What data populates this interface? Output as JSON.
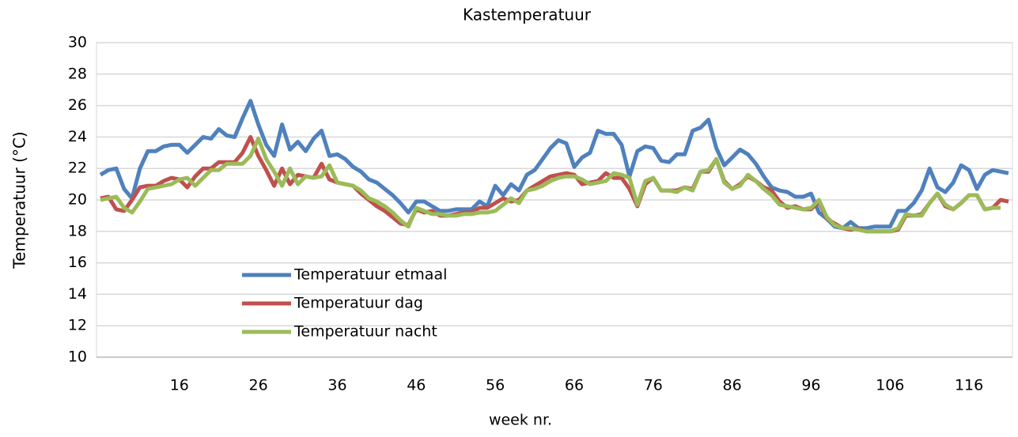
{
  "chart_data": {
    "type": "line",
    "title": "Kastemperatuur",
    "x_label": "week nr.",
    "y_label": "Temperatuur (°C)",
    "x": [
      6,
      7,
      8,
      9,
      10,
      11,
      12,
      13,
      14,
      15,
      16,
      17,
      18,
      19,
      20,
      21,
      22,
      23,
      24,
      25,
      26,
      27,
      28,
      29,
      30,
      31,
      32,
      33,
      34,
      35,
      36,
      37,
      38,
      39,
      40,
      41,
      42,
      43,
      44,
      45,
      46,
      47,
      48,
      49,
      50,
      51,
      52,
      53,
      54,
      55,
      56,
      57,
      58,
      59,
      60,
      61,
      62,
      63,
      64,
      65,
      66,
      67,
      68,
      69,
      70,
      71,
      72,
      73,
      74,
      75,
      76,
      77,
      78,
      79,
      80,
      81,
      82,
      83,
      84,
      85,
      86,
      87,
      88,
      89,
      90,
      91,
      92,
      93,
      94,
      95,
      96,
      97,
      98,
      99,
      100,
      101,
      102,
      103,
      104,
      105,
      106,
      107,
      108,
      109,
      110,
      111,
      112,
      113,
      114,
      115,
      116,
      117,
      118,
      119,
      120,
      121
    ],
    "xlim": [
      5.5,
      121.5
    ],
    "xticks": [
      16,
      26,
      36,
      46,
      56,
      66,
      76,
      86,
      96,
      106,
      116
    ],
    "ylim": [
      10,
      30
    ],
    "yticks": [
      10,
      12,
      14,
      16,
      18,
      20,
      22,
      24,
      26,
      28,
      30
    ],
    "grid": true,
    "series": [
      {
        "name": "Temperatuur etmaal",
        "color": "#4f81bd",
        "values": [
          21.6,
          21.9,
          22.0,
          20.7,
          20.1,
          22.0,
          23.1,
          23.1,
          23.4,
          23.5,
          23.5,
          23.0,
          23.5,
          24.0,
          23.9,
          24.5,
          24.1,
          24.0,
          25.2,
          26.3,
          24.8,
          23.5,
          22.8,
          24.8,
          23.2,
          23.7,
          23.1,
          23.9,
          24.4,
          22.8,
          22.9,
          22.6,
          22.1,
          21.8,
          21.3,
          21.1,
          20.7,
          20.3,
          19.8,
          19.2,
          19.9,
          19.9,
          19.6,
          19.3,
          19.3,
          19.4,
          19.4,
          19.4,
          19.9,
          19.6,
          20.9,
          20.3,
          21.0,
          20.6,
          21.6,
          21.9,
          22.6,
          23.3,
          23.8,
          23.6,
          22.1,
          22.7,
          23.0,
          24.4,
          24.2,
          24.2,
          23.5,
          21.5,
          23.1,
          23.4,
          23.3,
          22.5,
          22.4,
          22.9,
          22.9,
          24.4,
          24.6,
          25.1,
          23.3,
          22.2,
          22.7,
          23.2,
          22.9,
          22.3,
          21.5,
          20.8,
          20.6,
          20.5,
          20.2,
          20.2,
          20.4,
          19.2,
          18.8,
          18.3,
          18.2,
          18.6,
          18.2,
          18.2,
          18.3,
          18.3,
          18.3,
          19.3,
          19.3,
          19.8,
          20.6,
          22.0,
          20.8,
          20.5,
          21.1,
          22.2,
          21.9,
          20.7,
          21.6,
          21.9,
          21.8,
          21.7
        ]
      },
      {
        "name": "Temperatuur dag",
        "color": "#c0504d",
        "values": [
          20.1,
          20.2,
          19.4,
          19.3,
          20.0,
          20.8,
          20.9,
          20.9,
          21.2,
          21.4,
          21.3,
          20.8,
          21.5,
          22.0,
          22.0,
          22.4,
          22.4,
          22.4,
          23.0,
          24.0,
          22.8,
          21.9,
          20.9,
          22.0,
          21.0,
          21.6,
          21.5,
          21.4,
          22.3,
          21.3,
          21.1,
          21.0,
          20.9,
          20.4,
          20.0,
          19.6,
          19.3,
          18.9,
          18.5,
          18.4,
          19.4,
          19.2,
          19.3,
          19.0,
          19.0,
          19.1,
          19.2,
          19.2,
          19.5,
          19.5,
          19.8,
          20.1,
          19.9,
          20.0,
          20.6,
          20.9,
          21.2,
          21.5,
          21.6,
          21.7,
          21.6,
          21.0,
          21.1,
          21.2,
          21.7,
          21.4,
          21.4,
          20.7,
          19.6,
          21.0,
          21.4,
          20.6,
          20.6,
          20.6,
          20.8,
          20.7,
          21.8,
          21.8,
          22.6,
          21.2,
          20.7,
          21.0,
          21.5,
          21.2,
          20.8,
          20.6,
          19.9,
          19.5,
          19.6,
          19.4,
          19.4,
          19.9,
          18.8,
          18.5,
          18.2,
          18.1,
          18.2,
          18.0,
          18.0,
          18.0,
          18.0,
          18.1,
          19.0,
          19.0,
          19.1,
          19.8,
          20.4,
          19.6,
          19.4,
          19.8,
          20.3,
          20.3,
          19.4,
          19.5,
          20.0,
          19.9
        ]
      },
      {
        "name": "Temperatuur nacht",
        "color": "#9bbb59",
        "values": [
          20.0,
          20.1,
          20.2,
          19.5,
          19.2,
          19.9,
          20.7,
          20.8,
          20.9,
          21.0,
          21.3,
          21.4,
          20.9,
          21.4,
          21.9,
          21.9,
          22.3,
          22.3,
          22.3,
          22.8,
          23.9,
          22.6,
          21.8,
          20.9,
          22.0,
          21.0,
          21.5,
          21.4,
          21.5,
          22.2,
          21.1,
          21.0,
          20.9,
          20.6,
          20.1,
          19.9,
          19.6,
          19.2,
          18.7,
          18.3,
          19.5,
          19.3,
          19.1,
          19.1,
          19.0,
          19.0,
          19.1,
          19.1,
          19.2,
          19.2,
          19.3,
          19.7,
          20.1,
          19.8,
          20.6,
          20.7,
          20.9,
          21.2,
          21.4,
          21.5,
          21.5,
          21.3,
          21.0,
          21.1,
          21.2,
          21.7,
          21.6,
          21.4,
          19.7,
          21.2,
          21.4,
          20.6,
          20.6,
          20.5,
          20.8,
          20.6,
          21.8,
          21.9,
          22.6,
          21.1,
          20.7,
          20.9,
          21.6,
          21.2,
          20.7,
          20.3,
          19.7,
          19.6,
          19.5,
          19.4,
          19.5,
          20.0,
          18.9,
          18.4,
          18.2,
          18.2,
          18.1,
          18.0,
          18.0,
          18.0,
          18.0,
          18.2,
          19.1,
          19.0,
          19.0,
          19.8,
          20.4,
          19.7,
          19.4,
          19.8,
          20.3,
          20.3,
          19.4,
          19.5,
          19.5,
          null
        ]
      }
    ]
  }
}
